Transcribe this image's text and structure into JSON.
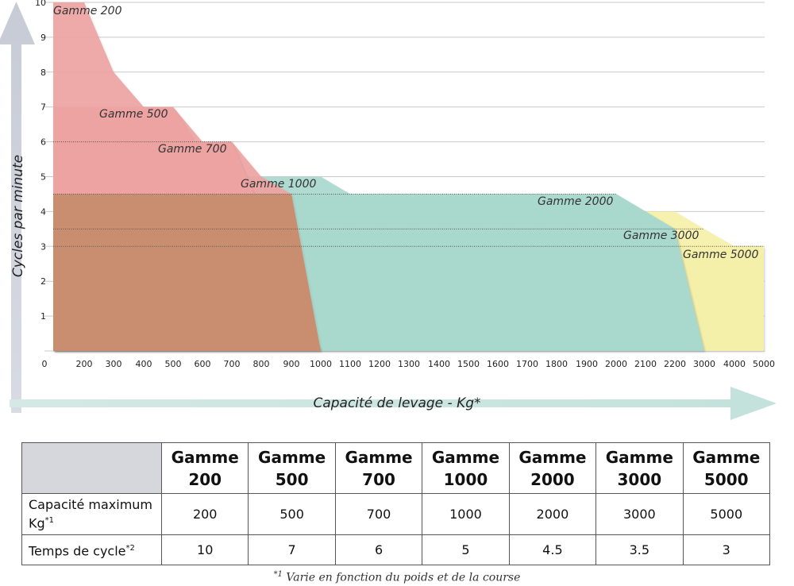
{
  "chart_data": {
    "type": "area",
    "title": "",
    "xlabel": "Capacité de levage - Kg*",
    "ylabel": "Cycles par minute",
    "x_ticks": [
      "0",
      "200",
      "300",
      "400",
      "500",
      "600",
      "700",
      "800",
      "900",
      "1000",
      "1100",
      "1200",
      "1300",
      "1400",
      "1500",
      "1600",
      "1700",
      "1800",
      "1900",
      "2000",
      "2100",
      "2200",
      "3000",
      "4000",
      "5000"
    ],
    "y_ticks": [
      "1",
      "2",
      "3",
      "4",
      "5",
      "6",
      "7",
      "8",
      "9",
      "10"
    ],
    "ylim": [
      0,
      10
    ],
    "grid": "horizontal",
    "dotted_reference_lines": [
      6,
      4.5,
      3.5,
      3
    ],
    "series": [
      {
        "name": "Gamme 200",
        "color": "#eea4a2",
        "points": [
          [
            0,
            10
          ],
          [
            200,
            10
          ],
          [
            300,
            8
          ],
          [
            400,
            7
          ],
          [
            500,
            7
          ],
          [
            600,
            6
          ],
          [
            700,
            6
          ],
          [
            800,
            5
          ],
          [
            900,
            4.5
          ],
          [
            1000,
            0
          ]
        ]
      },
      {
        "name": "Gamme 500",
        "color": "#eea4a2",
        "points": [
          [
            0,
            7
          ],
          [
            400,
            7
          ],
          [
            500,
            7
          ],
          [
            1000,
            0
          ]
        ]
      },
      {
        "name": "Gamme 700",
        "color": "#eea4a2",
        "points": [
          [
            0,
            6
          ],
          [
            600,
            6
          ],
          [
            700,
            6
          ],
          [
            1000,
            0
          ]
        ]
      },
      {
        "name": "Gamme 1000",
        "color": "#a9d9cf",
        "points": [
          [
            0,
            5
          ],
          [
            1000,
            5
          ],
          [
            1100,
            4.5
          ],
          [
            2000,
            4.5
          ],
          [
            2200,
            3.5
          ],
          [
            3000,
            0
          ]
        ]
      },
      {
        "name": "Gamme 2000",
        "color": "#aed8b4",
        "points": [
          [
            0,
            4.5
          ],
          [
            900,
            4.5
          ],
          [
            2000,
            4.5
          ],
          [
            2200,
            3.5
          ],
          [
            3000,
            0
          ]
        ]
      },
      {
        "name": "Gamme 3000",
        "color": "#f6f1a9",
        "points": [
          [
            0,
            4
          ],
          [
            2100,
            4
          ],
          [
            2200,
            4
          ],
          [
            3000,
            3.5
          ],
          [
            4000,
            3
          ],
          [
            5000,
            3
          ],
          [
            5000,
            0
          ],
          [
            3000,
            0
          ]
        ]
      },
      {
        "name": "Gamme 5000",
        "color": "#f6f1a9",
        "points": [
          [
            0,
            3
          ],
          [
            4000,
            3
          ],
          [
            5000,
            3
          ],
          [
            5000,
            0
          ]
        ]
      }
    ],
    "labels": [
      {
        "text": "Gamme 200",
        "x": 0,
        "y": 10
      },
      {
        "text": "Gamme 500",
        "x": 500,
        "y": 6.6
      },
      {
        "text": "Gamme 700",
        "x": 700,
        "y": 5.6
      },
      {
        "text": "Gamme 1000",
        "x": 1000,
        "y": 4.6
      },
      {
        "text": "Gamme 2000",
        "x": 2000,
        "y": 4.1
      },
      {
        "text": "Gamme 3000",
        "x": 3000,
        "y": 3.1
      },
      {
        "text": "Gamme 5000",
        "x": 5000,
        "y": 2.6
      }
    ]
  },
  "table": {
    "columns": [
      {
        "line1": "Gamme",
        "line2": "200"
      },
      {
        "line1": "Gamme",
        "line2": "500"
      },
      {
        "line1": "Gamme",
        "line2": "700"
      },
      {
        "line1": "Gamme",
        "line2": "1000"
      },
      {
        "line1": "Gamme",
        "line2": "2000"
      },
      {
        "line1": "Gamme",
        "line2": "3000"
      },
      {
        "line1": "Gamme",
        "line2": "5000"
      }
    ],
    "rows": [
      {
        "label_line1": "Capacité maximum",
        "label_line2": "Kg",
        "sup": "*1",
        "values": [
          "200",
          "500",
          "700",
          "1000",
          "2000",
          "3000",
          "5000"
        ]
      },
      {
        "label_line1": "Temps de cycle",
        "label_line2": "",
        "sup": "*2",
        "values": [
          "10",
          "7",
          "6",
          "5",
          "4.5",
          "3.5",
          "3"
        ]
      }
    ]
  },
  "footnote": {
    "sup": "*1",
    "text": " Varie en fonction du poids et de la course"
  }
}
